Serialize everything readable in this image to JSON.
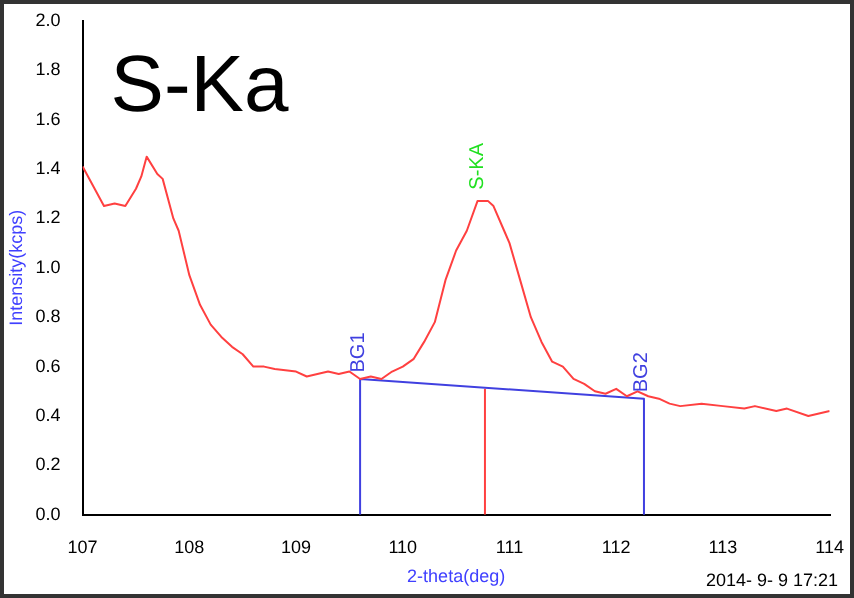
{
  "chart_data": {
    "type": "line",
    "title": "S-Ka",
    "xlabel": "2-theta(deg)",
    "ylabel": "Intensity(kcps)",
    "xlim": [
      107,
      114
    ],
    "xticks": [
      107,
      108,
      109,
      110,
      111,
      112,
      113,
      114
    ],
    "ylim": [
      0,
      2
    ],
    "yticks": [
      {
        "value": 0,
        "label": "0.0"
      },
      {
        "value": 0.2,
        "label": "0.2"
      },
      {
        "value": 0.4,
        "label": "0.4"
      },
      {
        "value": 0.6,
        "label": "0.6"
      },
      {
        "value": 0.8,
        "label": "0.8"
      },
      {
        "value": 1,
        "label": "1.0"
      },
      {
        "value": 1.2,
        "label": "1.2"
      },
      {
        "value": 1.4,
        "label": "1.4"
      },
      {
        "value": 1.6,
        "label": "1.6"
      },
      {
        "value": 1.8,
        "label": "1.8"
      },
      {
        "value": 2,
        "label": "2.0"
      }
    ],
    "grid": false,
    "legend": false,
    "marker": "none",
    "line_style": "solid",
    "series": [
      {
        "color": "#ff4040",
        "x": [
          107,
          107.1,
          107.2,
          107.3,
          107.4,
          107.5,
          107.55,
          107.6,
          107.7,
          107.75,
          107.85,
          107.9,
          108,
          108.1,
          108.2,
          108.3,
          108.4,
          108.5,
          108.6,
          108.7,
          108.8,
          109,
          109.1,
          109.2,
          109.3,
          109.4,
          109.5,
          109.6,
          109.7,
          109.8,
          109.9,
          110,
          110.1,
          110.2,
          110.3,
          110.4,
          110.5,
          110.6,
          110.7,
          110.8,
          110.85,
          110.95,
          111,
          111.1,
          111.2,
          111.3,
          111.4,
          111.5,
          111.6,
          111.7,
          111.8,
          111.9,
          112,
          112.1,
          112.2,
          112.3,
          112.4,
          112.5,
          112.6,
          112.8,
          113,
          113.2,
          113.3,
          113.5,
          113.6,
          113.8,
          114
        ],
        "values": [
          1.41,
          1.33,
          1.25,
          1.26,
          1.25,
          1.32,
          1.37,
          1.45,
          1.38,
          1.36,
          1.2,
          1.15,
          0.97,
          0.85,
          0.77,
          0.72,
          0.68,
          0.65,
          0.6,
          0.6,
          0.59,
          0.58,
          0.56,
          0.57,
          0.58,
          0.57,
          0.58,
          0.55,
          0.56,
          0.55,
          0.58,
          0.6,
          0.63,
          0.7,
          0.78,
          0.95,
          1.07,
          1.15,
          1.27,
          1.27,
          1.25,
          1.15,
          1.1,
          0.95,
          0.8,
          0.7,
          0.62,
          0.6,
          0.55,
          0.53,
          0.5,
          0.49,
          0.51,
          0.48,
          0.5,
          0.48,
          0.47,
          0.45,
          0.44,
          0.45,
          0.44,
          0.43,
          0.44,
          0.42,
          0.43,
          0.4,
          0.42
        ]
      },
      {
        "color": "#4040e0",
        "x": [
          109.6,
          109.6,
          112.26,
          112.26
        ],
        "values": [
          0,
          0.55,
          0.47,
          0
        ]
      },
      {
        "color": "#ff4040",
        "x": [
          110.77,
          110.77
        ],
        "values": [
          0,
          0.51
        ]
      }
    ],
    "annotations": [
      {
        "text": "S-KA",
        "x": 110.72,
        "y": 1.3
      },
      {
        "text": "BG1",
        "x": 109.6,
        "y": 0.56
      },
      {
        "text": "BG2",
        "x": 112.26,
        "y": 0.48
      },
      "2014- 9- 9 17:21"
    ]
  }
}
